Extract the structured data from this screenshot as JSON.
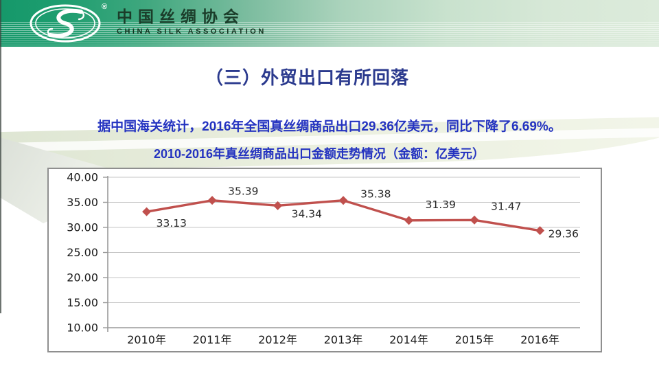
{
  "header": {
    "org_name_cn": "中国丝绸协会",
    "org_name_en": "CHINA SILK ASSOCIATION",
    "registered_mark": "®"
  },
  "title": "（三）外贸出口有所回落",
  "subtitle": "据中国海关统计，2016年全国真丝绸商品出口29.36亿美元，同比下降了6.69%。",
  "chart_data": {
    "type": "line",
    "title": "2010-2016年真丝绸商品出口金额走势情况（金额：亿美元）",
    "categories": [
      "2010年",
      "2011年",
      "2012年",
      "2013年",
      "2014年",
      "2015年",
      "2016年"
    ],
    "values": [
      33.13,
      35.39,
      34.34,
      35.38,
      31.39,
      31.47,
      29.36
    ],
    "ylim": [
      10,
      40
    ],
    "yticks": [
      40,
      35,
      30,
      25,
      20,
      15,
      10
    ],
    "ytick_decimals": 2,
    "grid": true,
    "legend": "none",
    "line_color": "#c0504d",
    "marker": "diamond"
  },
  "colors": {
    "banner_green": "#15986a",
    "banner_mint": "#dcebdb",
    "title_navy": "#2b3a8e",
    "body_blue": "#2433c0",
    "series_red": "#c0504d"
  }
}
